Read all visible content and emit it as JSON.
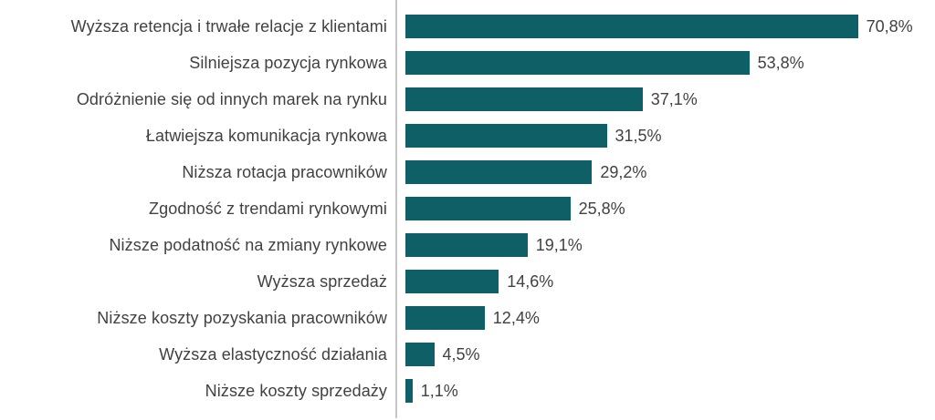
{
  "chart_data": {
    "type": "bar",
    "orientation": "horizontal",
    "title": "",
    "xlabel": "",
    "ylabel": "",
    "xlim": [
      0,
      80
    ],
    "grid": false,
    "legend": false,
    "bar_color": "#0e5f66",
    "axis_line_color": "#c6c6c6",
    "label_color": "#414141",
    "categories": [
      "Wyższa retencja i trwałe relacje z klientami",
      "Silniejsza pozycja rynkowa",
      "Odróżnienie się od innych marek na rynku",
      "Łatwiejsza komunikacja rynkowa",
      "Niższa rotacja pracowników",
      "Zgodność z trendami rynkowymi",
      "Niższe podatność na zmiany rynkowe",
      "Wyższa sprzedaż",
      "Niższe koszty pozyskania pracowników",
      "Wyższa elastyczność działania",
      "Niższe koszty sprzedaży"
    ],
    "values": [
      70.8,
      53.8,
      37.1,
      31.5,
      29.2,
      25.8,
      19.1,
      14.6,
      12.4,
      4.5,
      1.1
    ],
    "value_labels": [
      "70,8%",
      "53,8%",
      "37,1%",
      "31,5%",
      "29,2%",
      "25,8%",
      "19,1%",
      "14,6%",
      "12,4%",
      "4,5%",
      "1,1%"
    ]
  }
}
